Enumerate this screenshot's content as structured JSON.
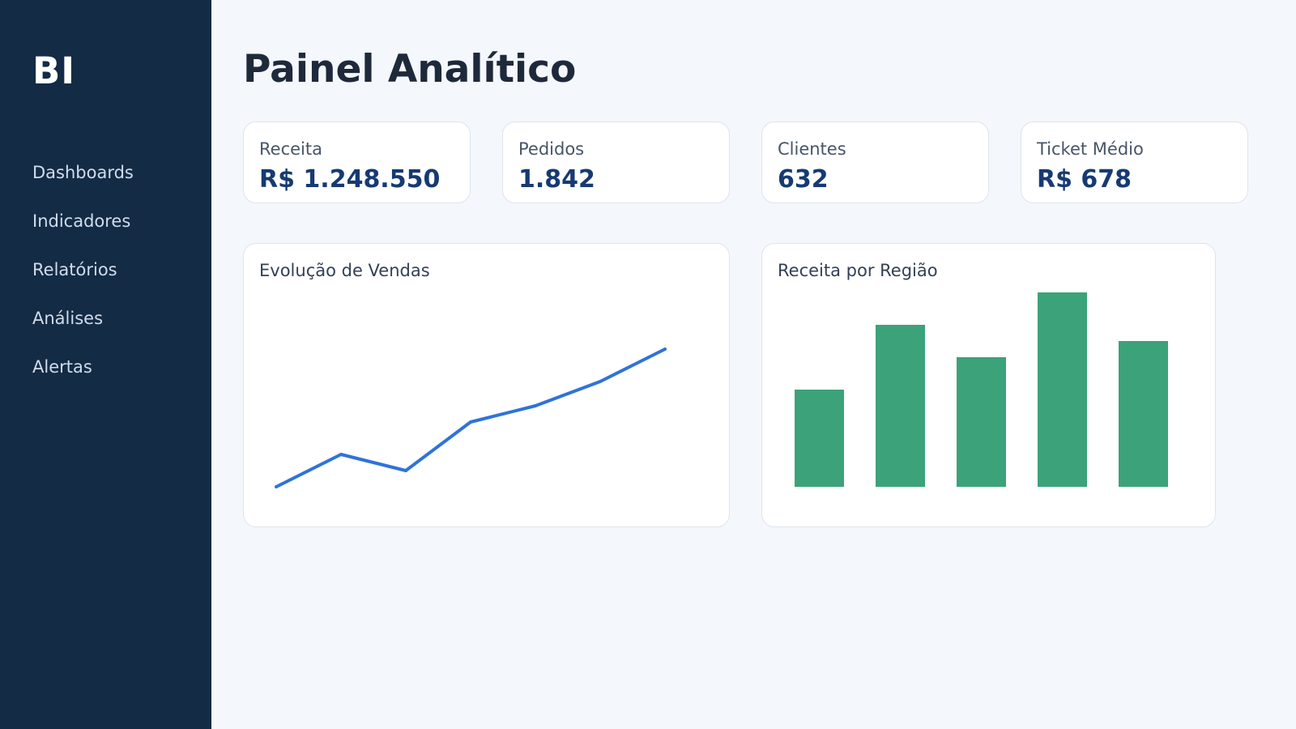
{
  "app": {
    "logo": "BI",
    "title": "Painel Analítico"
  },
  "sidebar": {
    "items": [
      {
        "label": "Dashboards"
      },
      {
        "label": "Indicadores"
      },
      {
        "label": "Relatórios"
      },
      {
        "label": "Análises"
      },
      {
        "label": "Alertas"
      }
    ]
  },
  "kpis": [
    {
      "label": "Receita",
      "value": "R$ 1.248.550"
    },
    {
      "label": "Pedidos",
      "value": "1.842"
    },
    {
      "label": "Clientes",
      "value": "632"
    },
    {
      "label": "Ticket Médio",
      "value": "R$ 678"
    }
  ],
  "colors": {
    "sidebar": "#132b45",
    "accent_line": "#2f73d8",
    "accent_bar": "#3ca27a",
    "kpi_value": "#163a72"
  },
  "chart_data": [
    {
      "type": "line",
      "title": "Evolução de Vendas",
      "x": [
        1,
        2,
        3,
        4,
        5,
        6,
        7
      ],
      "values": [
        0,
        2,
        1,
        4,
        5,
        6.5,
        8.5
      ],
      "ylim": [
        0,
        10
      ],
      "grid": false,
      "color": "#2f73d8"
    },
    {
      "type": "bar",
      "title": "Receita por Região",
      "categories": [
        "",
        "",
        "",
        "",
        ""
      ],
      "values": [
        6,
        10,
        8,
        12,
        9
      ],
      "ylim": [
        0,
        12
      ],
      "grid": false,
      "color": "#3ca27a"
    }
  ]
}
